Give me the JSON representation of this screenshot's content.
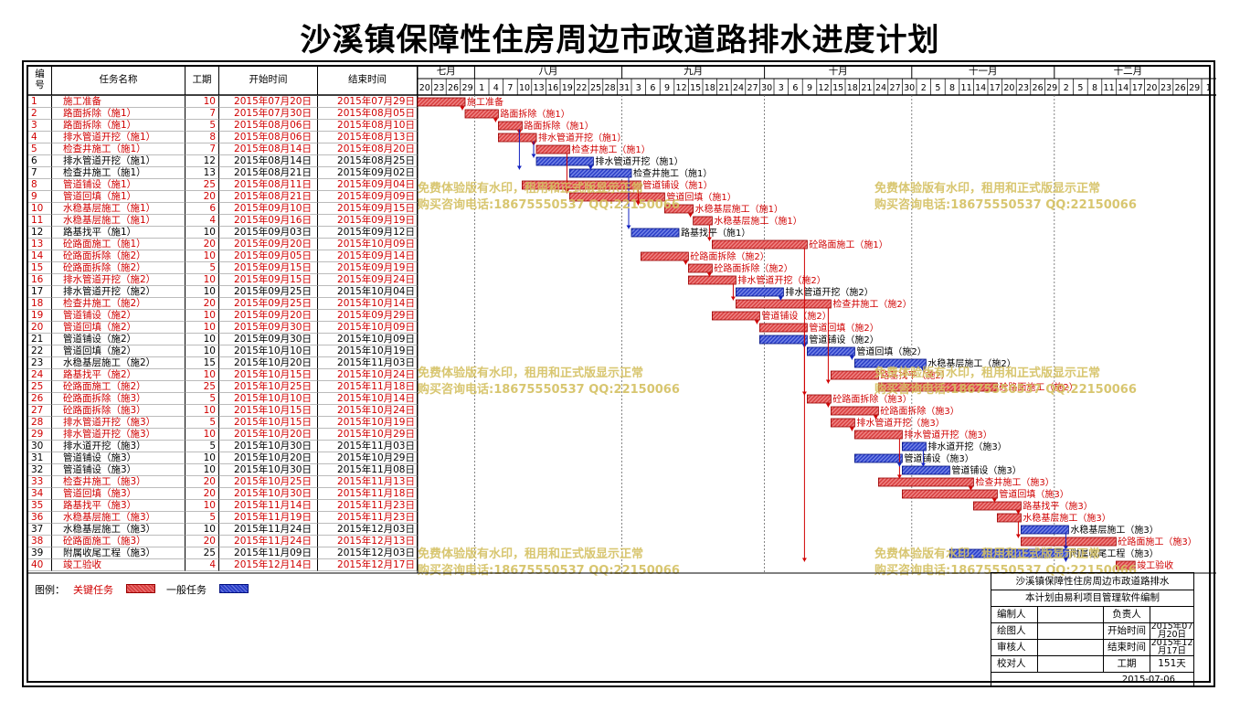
{
  "title": "沙溪镇保障性住房周边市政道路排水进度计划",
  "columns": {
    "id": "编号",
    "name": "任务名称",
    "duration": "工期",
    "start": "开始时间",
    "end": "结束时间"
  },
  "months": [
    "七月",
    "八月",
    "九月",
    "十月",
    "十一月",
    "十二月"
  ],
  "day_ticks": [
    "20",
    "23",
    "26",
    "29",
    "1",
    "4",
    "7",
    "10",
    "13",
    "16",
    "19",
    "22",
    "25",
    "28",
    "31",
    "3",
    "6",
    "9",
    "12",
    "15",
    "18",
    "21",
    "24",
    "27",
    "30",
    "3",
    "6",
    "9",
    "12",
    "15",
    "18",
    "21",
    "24",
    "27",
    "30",
    "2",
    "5",
    "8",
    "11",
    "14",
    "17",
    "20",
    "23",
    "26",
    "29",
    "2",
    "5",
    "8",
    "11",
    "14",
    "17",
    "20",
    "23",
    "26",
    "29",
    "1"
  ],
  "colors": {
    "critical": "#d84040",
    "normal": "#2b3fc8",
    "critical_text": "#d00000",
    "watermark": "#d4c060"
  },
  "tasks": [
    {
      "id": "1",
      "name": "施工准备",
      "dur": "10",
      "start": "2015年07月20日",
      "end": "2015年07月29日",
      "critical": true,
      "label": "施工准备"
    },
    {
      "id": "2",
      "name": "路面拆除（施1）",
      "dur": "7",
      "start": "2015年07月30日",
      "end": "2015年08月05日",
      "critical": true,
      "label": "路面拆除（施1）"
    },
    {
      "id": "3",
      "name": "路面拆除（施1）",
      "dur": "5",
      "start": "2015年08月06日",
      "end": "2015年08月10日",
      "critical": true,
      "label": "路面拆除（施1）"
    },
    {
      "id": "4",
      "name": "排水管道开挖（施1）",
      "dur": "8",
      "start": "2015年08月06日",
      "end": "2015年08月13日",
      "critical": true,
      "label": "排水管道开挖（施1）"
    },
    {
      "id": "5",
      "name": "检查井施工（施1）",
      "dur": "7",
      "start": "2015年08月14日",
      "end": "2015年08月20日",
      "critical": true,
      "label": "检查井施工（施1）"
    },
    {
      "id": "6",
      "name": "排水管道开挖（施1）",
      "dur": "12",
      "start": "2015年08月14日",
      "end": "2015年08月25日",
      "critical": false,
      "label": "排水管道开挖（施1）"
    },
    {
      "id": "7",
      "name": "检查井施工（施1）",
      "dur": "13",
      "start": "2015年08月21日",
      "end": "2015年09月02日",
      "critical": false,
      "label": "检查井施工（施1）"
    },
    {
      "id": "8",
      "name": "管道铺设（施1）",
      "dur": "25",
      "start": "2015年08月11日",
      "end": "2015年09月04日",
      "critical": true,
      "label": "管道铺设（施1）"
    },
    {
      "id": "9",
      "name": "管道回填（施1）",
      "dur": "20",
      "start": "2015年08月21日",
      "end": "2015年09月09日",
      "critical": true,
      "label": "管道回填（施1）"
    },
    {
      "id": "10",
      "name": "水稳基层施工（施1）",
      "dur": "6",
      "start": "2015年09月10日",
      "end": "2015年09月15日",
      "critical": true,
      "label": "水稳基层施工（施1）"
    },
    {
      "id": "11",
      "name": "水稳基层施工（施1）",
      "dur": "4",
      "start": "2015年09月16日",
      "end": "2015年09月19日",
      "critical": true,
      "label": "水稳基层施工（施1）"
    },
    {
      "id": "12",
      "name": "路基找平（施1）",
      "dur": "10",
      "start": "2015年09月03日",
      "end": "2015年09月12日",
      "critical": false,
      "label": "路基找平（施1）"
    },
    {
      "id": "13",
      "name": "砼路面施工（施1）",
      "dur": "20",
      "start": "2015年09月20日",
      "end": "2015年10月09日",
      "critical": true,
      "label": "砼路面施工（施1）"
    },
    {
      "id": "14",
      "name": "砼路面拆除（施2）",
      "dur": "10",
      "start": "2015年09月05日",
      "end": "2015年09月14日",
      "critical": true,
      "label": "砼路面拆除（施2）"
    },
    {
      "id": "15",
      "name": "砼路面拆除（施2）",
      "dur": "5",
      "start": "2015年09月15日",
      "end": "2015年09月19日",
      "critical": true,
      "label": "砼路面拆除（施2）"
    },
    {
      "id": "16",
      "name": "排水管道开挖（施2）",
      "dur": "10",
      "start": "2015年09月15日",
      "end": "2015年09月24日",
      "critical": true,
      "label": "排水管道开挖（施2）"
    },
    {
      "id": "17",
      "name": "排水管道开挖（施2）",
      "dur": "10",
      "start": "2015年09月25日",
      "end": "2015年10月04日",
      "critical": false,
      "label": "排水管道开挖（施2）"
    },
    {
      "id": "18",
      "name": "检查井施工（施2）",
      "dur": "20",
      "start": "2015年09月25日",
      "end": "2015年10月14日",
      "critical": true,
      "label": "检查井施工（施2）"
    },
    {
      "id": "19",
      "name": "管道铺设（施2）",
      "dur": "10",
      "start": "2015年09月20日",
      "end": "2015年09月29日",
      "critical": true,
      "label": "管道铺设（施2）"
    },
    {
      "id": "20",
      "name": "管道回填（施2）",
      "dur": "10",
      "start": "2015年09月30日",
      "end": "2015年10月09日",
      "critical": true,
      "label": "管道回填（施2）"
    },
    {
      "id": "21",
      "name": "管道铺设（施2）",
      "dur": "10",
      "start": "2015年09月30日",
      "end": "2015年10月09日",
      "critical": false,
      "label": "管道铺设（施2）"
    },
    {
      "id": "22",
      "name": "管道回填（施2）",
      "dur": "10",
      "start": "2015年10月10日",
      "end": "2015年10月19日",
      "critical": false,
      "label": "管道回填（施2）"
    },
    {
      "id": "23",
      "name": "水稳基层施工（施2）",
      "dur": "15",
      "start": "2015年10月20日",
      "end": "2015年11月03日",
      "critical": false,
      "label": "水稳基层施工（施2）"
    },
    {
      "id": "24",
      "name": "路基找平（施2）",
      "dur": "10",
      "start": "2015年10月15日",
      "end": "2015年10月24日",
      "critical": true,
      "label": "路基找平（施2）"
    },
    {
      "id": "25",
      "name": "砼路面施工（施2）",
      "dur": "25",
      "start": "2015年10月25日",
      "end": "2015年11月18日",
      "critical": true,
      "label": "砼路面施工（施2）"
    },
    {
      "id": "26",
      "name": "砼路面拆除（施3）",
      "dur": "5",
      "start": "2015年10月10日",
      "end": "2015年10月14日",
      "critical": true,
      "label": "砼路面拆除（施3）"
    },
    {
      "id": "27",
      "name": "砼路面拆除（施3）",
      "dur": "10",
      "start": "2015年10月15日",
      "end": "2015年10月24日",
      "critical": true,
      "label": "砼路面拆除（施3）"
    },
    {
      "id": "28",
      "name": "排水管道开挖（施3）",
      "dur": "5",
      "start": "2015年10月15日",
      "end": "2015年10月19日",
      "critical": true,
      "label": "排水管道开挖（施3）"
    },
    {
      "id": "29",
      "name": "排水管道开挖（施3）",
      "dur": "10",
      "start": "2015年10月20日",
      "end": "2015年10月29日",
      "critical": true,
      "label": "排水管道开挖（施3）"
    },
    {
      "id": "30",
      "name": "排水道开挖（施3）",
      "dur": "5",
      "start": "2015年10月30日",
      "end": "2015年11月03日",
      "critical": false,
      "label": "排水道开挖（施3）"
    },
    {
      "id": "31",
      "name": "管道铺设（施3）",
      "dur": "10",
      "start": "2015年10月20日",
      "end": "2015年10月29日",
      "critical": false,
      "label": "管道铺设（施3）"
    },
    {
      "id": "32",
      "name": "管道铺设（施3）",
      "dur": "10",
      "start": "2015年10月30日",
      "end": "2015年11月08日",
      "critical": false,
      "label": "管道铺设（施3）"
    },
    {
      "id": "33",
      "name": "检查井施工（施3）",
      "dur": "20",
      "start": "2015年10月25日",
      "end": "2015年11月13日",
      "critical": true,
      "label": "检查井施工（施3）"
    },
    {
      "id": "34",
      "name": "管道回填（施3）",
      "dur": "20",
      "start": "2015年10月30日",
      "end": "2015年11月18日",
      "critical": true,
      "label": "管道回填（施3）"
    },
    {
      "id": "35",
      "name": "路基找平（施3）",
      "dur": "10",
      "start": "2015年11月14日",
      "end": "2015年11月23日",
      "critical": true,
      "label": "路基找平（施3）"
    },
    {
      "id": "36",
      "name": "水稳基层施工（施3）",
      "dur": "5",
      "start": "2015年11月19日",
      "end": "2015年11月23日",
      "critical": true,
      "label": "水稳基层施工（施3）"
    },
    {
      "id": "37",
      "name": "水稳基层施工（施3）",
      "dur": "10",
      "start": "2015年11月24日",
      "end": "2015年12月03日",
      "critical": false,
      "label": "水稳基层施工（施3）"
    },
    {
      "id": "38",
      "name": "砼路面施工（施3）",
      "dur": "20",
      "start": "2015年11月24日",
      "end": "2015年12月13日",
      "critical": true,
      "label": "砼路面施工（施3）"
    },
    {
      "id": "39",
      "name": "附属收尾工程（施3）",
      "dur": "25",
      "start": "2015年11月09日",
      "end": "2015年12月03日",
      "critical": false,
      "label": "附属收尾工程（施3）"
    },
    {
      "id": "40",
      "name": "竣工验收",
      "dur": "4",
      "start": "2015年12月14日",
      "end": "2015年12月17日",
      "critical": true,
      "label": "竣工验收"
    }
  ],
  "watermark": {
    "line1": "免费体验版有水印，租用和正式版显示正常",
    "line2": "购买咨询电话:18675550537 QQ:22150066"
  },
  "legend": {
    "label": "图例：",
    "critical": "关键任务",
    "normal": "一般任务"
  },
  "info": {
    "project": "沙溪镇保障性住房周边市政道路排水",
    "software": "本计划由易利项目管理软件编制",
    "compiler": "编制人",
    "drawer": "绘图人",
    "reviewer": "审核人",
    "checker": "校对人",
    "owner": "负责人",
    "start_label": "开始时间",
    "end_label": "结束时间",
    "duration_label": "工期",
    "start_value": "2015年07月20日",
    "end_value": "2015年12月17日",
    "duration_value": "151天",
    "date": "2015-07-06"
  }
}
